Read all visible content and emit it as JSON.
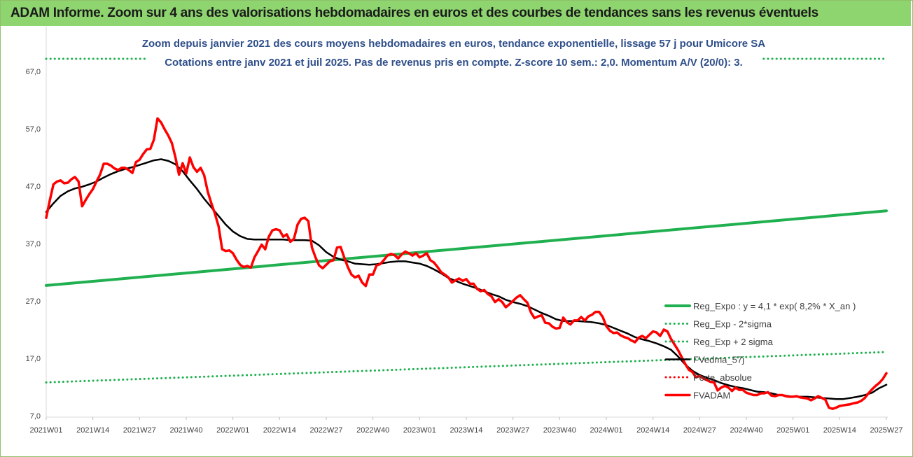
{
  "header": {
    "title": "ADAM Informe. Zoom sur 4 ans des valorisations hebdomadaires en euros et des courbes de tendances sans les revenus éventuels"
  },
  "chart_data": {
    "type": "line",
    "subtitle": [
      "Zoom depuis janvier 2021 des cours moyens hebdomadaires en euros, tendance exponentielle, lissage 57 j pour Umicore SA",
      "Cotations entre janv 2021 et juil 2025. Pas de revenus pris en compte. Z-score 10 sem.: 2,0. Momentum A/V (20/0): 3."
    ],
    "xlabel": "",
    "ylabel": "",
    "ylim": [
      7,
      67
    ],
    "yticks": [
      "67,0",
      "57,0",
      "47,0",
      "37,0",
      "27,0",
      "17,0",
      "7,0"
    ],
    "yticks_values": [
      67,
      57,
      47,
      37,
      27,
      17,
      7
    ],
    "x_range_weeks": [
      0,
      234
    ],
    "xticks": [
      "2021W01",
      "2021W14",
      "2021W27",
      "2021W40",
      "2022W01",
      "2022W14",
      "2022W27",
      "2022W40",
      "2023W01",
      "2023W14",
      "2023W27",
      "2023W40",
      "2024W01",
      "2024W14",
      "2024W27",
      "2024W40",
      "2025W01",
      "2025W14",
      "2025W27"
    ],
    "xticks_weeks": [
      0,
      13,
      26,
      39,
      52,
      65,
      78,
      91,
      104,
      117,
      130,
      143,
      156,
      169,
      182,
      195,
      208,
      221,
      234
    ],
    "grid": false,
    "legend_position": "bottom-right",
    "legend": [
      {
        "label": "Reg_Expo : y = 4,1 * exp( 8,2% *  X_an )",
        "color": "#20b050",
        "style": "solid-thick"
      },
      {
        "label": "Reg_Exp - 2*sigma",
        "color": "#20b050",
        "style": "dotted"
      },
      {
        "label": "Reg_Exp + 2 sigma",
        "color": "#20b050",
        "style": "dotted"
      },
      {
        "label": "FVedma_57j",
        "color": "#000000",
        "style": "solid"
      },
      {
        "label": "Perte_absolue",
        "color": "#ff0000",
        "style": "dotted"
      },
      {
        "label": "FVADAM",
        "color": "#ff0000",
        "style": "solid-thick"
      }
    ],
    "series": [
      {
        "name": "Reg_Expo : y = 4,1 * exp( 8,2% *  X_an )",
        "color": "#20b050",
        "x": [
          0,
          234
        ],
        "values": [
          29.7,
          42.7
        ]
      },
      {
        "name": "Reg_Exp + 2 sigma",
        "color": "#20b050",
        "x": [
          0,
          234
        ],
        "values": [
          69.2,
          69.2
        ]
      },
      {
        "name": "Reg_Exp - 2*sigma",
        "color": "#20b050",
        "x": [
          0,
          234
        ],
        "values": [
          12.8,
          18.1
        ]
      },
      {
        "name": "FVedma_57j",
        "color": "#000000",
        "x": [
          0,
          2,
          4,
          6,
          8,
          10,
          12,
          14,
          16,
          18,
          20,
          22,
          24,
          26,
          28,
          30,
          32,
          34,
          36,
          38,
          40,
          42,
          44,
          46,
          48,
          50,
          52,
          54,
          56,
          58,
          60,
          62,
          64,
          66,
          68,
          70,
          72,
          74,
          76,
          78,
          80,
          82,
          84,
          86,
          88,
          90,
          92,
          94,
          96,
          98,
          100,
          102,
          104,
          106,
          108,
          110,
          112,
          114,
          116,
          118,
          120,
          122,
          124,
          126,
          128,
          130,
          132,
          134,
          136,
          138,
          140,
          142,
          144,
          146,
          148,
          150,
          152,
          154,
          156,
          158,
          160,
          162,
          164,
          166,
          168,
          170,
          172,
          174,
          176,
          178,
          180,
          182,
          184,
          186,
          188,
          190,
          192,
          194,
          196,
          198,
          200,
          202,
          204,
          206,
          208,
          210,
          212,
          214,
          216,
          218,
          220,
          222,
          224,
          226,
          228,
          230,
          232,
          234
        ],
        "values": [
          42.5,
          44.0,
          45.3,
          46.1,
          46.6,
          46.9,
          47.3,
          47.8,
          48.5,
          49.1,
          49.6,
          50.0,
          50.3,
          50.7,
          51.1,
          51.5,
          51.7,
          51.4,
          50.8,
          49.6,
          48.0,
          46.5,
          44.8,
          43.3,
          41.8,
          40.3,
          39.1,
          38.3,
          37.8,
          37.7,
          37.7,
          37.7,
          37.7,
          37.7,
          37.6,
          37.6,
          37.6,
          37.5,
          36.7,
          35.5,
          34.7,
          34.2,
          33.9,
          33.5,
          33.4,
          33.3,
          33.4,
          33.6,
          33.8,
          33.9,
          33.9,
          33.7,
          33.5,
          33.1,
          32.5,
          31.8,
          31.0,
          30.5,
          30.0,
          29.6,
          29.2,
          28.7,
          28.2,
          27.8,
          27.2,
          26.8,
          26.5,
          26.1,
          25.5,
          24.9,
          24.4,
          23.8,
          23.5,
          23.5,
          23.5,
          23.4,
          23.3,
          23.1,
          22.8,
          22.3,
          21.8,
          21.3,
          20.7,
          20.3,
          20.0,
          19.6,
          19.1,
          18.5,
          17.3,
          15.9,
          14.8,
          14.1,
          13.6,
          13.2,
          12.7,
          12.3,
          12.0,
          11.8,
          11.5,
          11.2,
          11.1,
          10.9,
          10.6,
          10.5,
          10.3,
          10.3,
          10.3,
          10.2,
          10.1,
          10.0,
          9.9,
          9.9,
          10.1,
          10.3,
          10.6,
          11.0,
          11.8,
          12.4
        ]
      },
      {
        "name": "FVADAM",
        "color": "#ff0000",
        "x": [
          0,
          1,
          2,
          3,
          4,
          5,
          6,
          7,
          8,
          9,
          10,
          11,
          12,
          13,
          14,
          15,
          16,
          17,
          18,
          19,
          20,
          21,
          22,
          23,
          24,
          25,
          26,
          27,
          28,
          29,
          30,
          31,
          32,
          33,
          34,
          35,
          36,
          37,
          38,
          39,
          40,
          41,
          42,
          43,
          44,
          45,
          46,
          47,
          48,
          49,
          50,
          51,
          52,
          53,
          54,
          55,
          56,
          57,
          58,
          59,
          60,
          61,
          62,
          63,
          64,
          65,
          66,
          67,
          68,
          69,
          70,
          71,
          72,
          73,
          74,
          75,
          76,
          77,
          78,
          79,
          80,
          81,
          82,
          83,
          84,
          85,
          86,
          87,
          88,
          89,
          90,
          91,
          92,
          93,
          94,
          95,
          96,
          97,
          98,
          99,
          100,
          101,
          102,
          103,
          104,
          105,
          106,
          107,
          108,
          109,
          110,
          111,
          112,
          113,
          114,
          115,
          116,
          117,
          118,
          119,
          120,
          121,
          122,
          123,
          124,
          125,
          126,
          127,
          128,
          129,
          130,
          131,
          132,
          133,
          134,
          135,
          136,
          137,
          138,
          139,
          140,
          141,
          142,
          143,
          144,
          145,
          146,
          147,
          148,
          149,
          150,
          151,
          152,
          153,
          154,
          155,
          156,
          157,
          158,
          159,
          160,
          161,
          162,
          163,
          164,
          165,
          166,
          167,
          168,
          169,
          170,
          171,
          172,
          173,
          174,
          175,
          176,
          177,
          178,
          179,
          180,
          181,
          182,
          183,
          184,
          185,
          186,
          187,
          188,
          189,
          190,
          191,
          192,
          193,
          194,
          195,
          196,
          197,
          198,
          199,
          200,
          201,
          202,
          203,
          204,
          205,
          206,
          207,
          208,
          209,
          210,
          211,
          212,
          213,
          214,
          215,
          216,
          217,
          218,
          219,
          220,
          221,
          222,
          223,
          224,
          225,
          226,
          227,
          228,
          229,
          230,
          231,
          232,
          233,
          234
        ],
        "values": [
          41.5,
          44.5,
          47.3,
          47.8,
          48.0,
          47.5,
          47.6,
          48.2,
          48.6,
          47.8,
          43.5,
          44.6,
          45.6,
          46.5,
          47.8,
          49.0,
          50.9,
          50.9,
          50.6,
          50.1,
          49.8,
          50.2,
          50.2,
          49.8,
          49.3,
          51.2,
          51.6,
          52.6,
          53.4,
          53.5,
          55.1,
          58.8,
          58.1,
          56.9,
          55.8,
          54.5,
          52.0,
          49.0,
          51.0,
          49.2,
          52.0,
          50.3,
          49.5,
          50.2,
          48.9,
          46.0,
          44.0,
          42.2,
          40.0,
          36.0,
          35.7,
          35.8,
          35.3,
          34.2,
          33.3,
          32.9,
          33.1,
          32.8,
          34.6,
          35.7,
          36.8,
          36.0,
          38.2,
          39.3,
          39.5,
          39.3,
          38.2,
          38.6,
          37.3,
          37.8,
          40.3,
          41.3,
          41.5,
          40.9,
          36.3,
          34.6,
          33.2,
          32.7,
          33.3,
          33.9,
          34.1,
          36.3,
          36.4,
          34.6,
          32.9,
          31.6,
          31.1,
          31.4,
          30.2,
          29.6,
          31.6,
          31.6,
          33.2,
          33.4,
          34.1,
          34.9,
          35.2,
          35.0,
          34.4,
          35.1,
          35.6,
          35.3,
          34.9,
          35.3,
          34.6,
          34.9,
          35.3,
          34.1,
          33.7,
          32.9,
          32.0,
          31.6,
          31.1,
          30.2,
          30.6,
          30.9,
          30.5,
          30.8,
          30.0,
          30.0,
          29.1,
          28.7,
          28.9,
          28.2,
          27.8,
          26.8,
          27.3,
          26.8,
          25.9,
          26.4,
          27.0,
          27.6,
          28.0,
          27.3,
          26.7,
          25.0,
          24.0,
          24.3,
          24.5,
          23.2,
          23.1,
          22.5,
          22.2,
          22.3,
          24.1,
          23.3,
          22.9,
          23.6,
          23.6,
          24.2,
          23.6,
          24.3,
          24.6,
          25.1,
          25.1,
          24.2,
          22.6,
          21.8,
          21.4,
          21.5,
          21.0,
          20.7,
          20.5,
          20.1,
          19.8,
          20.6,
          20.9,
          20.5,
          21.1,
          21.7,
          21.5,
          20.9,
          22.0,
          21.7,
          20.4,
          19.4,
          18.4,
          17.2,
          16.0,
          15.0,
          14.6,
          13.7,
          13.9,
          13.5,
          13.2,
          12.9,
          12.8,
          11.4,
          11.9,
          12.2,
          11.9,
          11.3,
          11.9,
          11.5,
          11.5,
          11.0,
          10.8,
          10.6,
          10.6,
          10.9,
          10.9,
          11.1,
          10.5,
          10.4,
          10.6,
          10.6,
          10.4,
          10.3,
          10.3,
          10.4,
          10.2,
          10.1,
          10.0,
          9.7,
          10.0,
          10.4,
          10.1,
          9.8,
          8.4,
          8.2,
          8.4,
          8.7,
          8.8,
          8.9,
          9.0,
          9.2,
          9.3,
          9.6,
          10.1,
          10.9,
          11.6,
          12.2,
          12.7,
          13.4,
          14.4
        ]
      }
    ]
  }
}
